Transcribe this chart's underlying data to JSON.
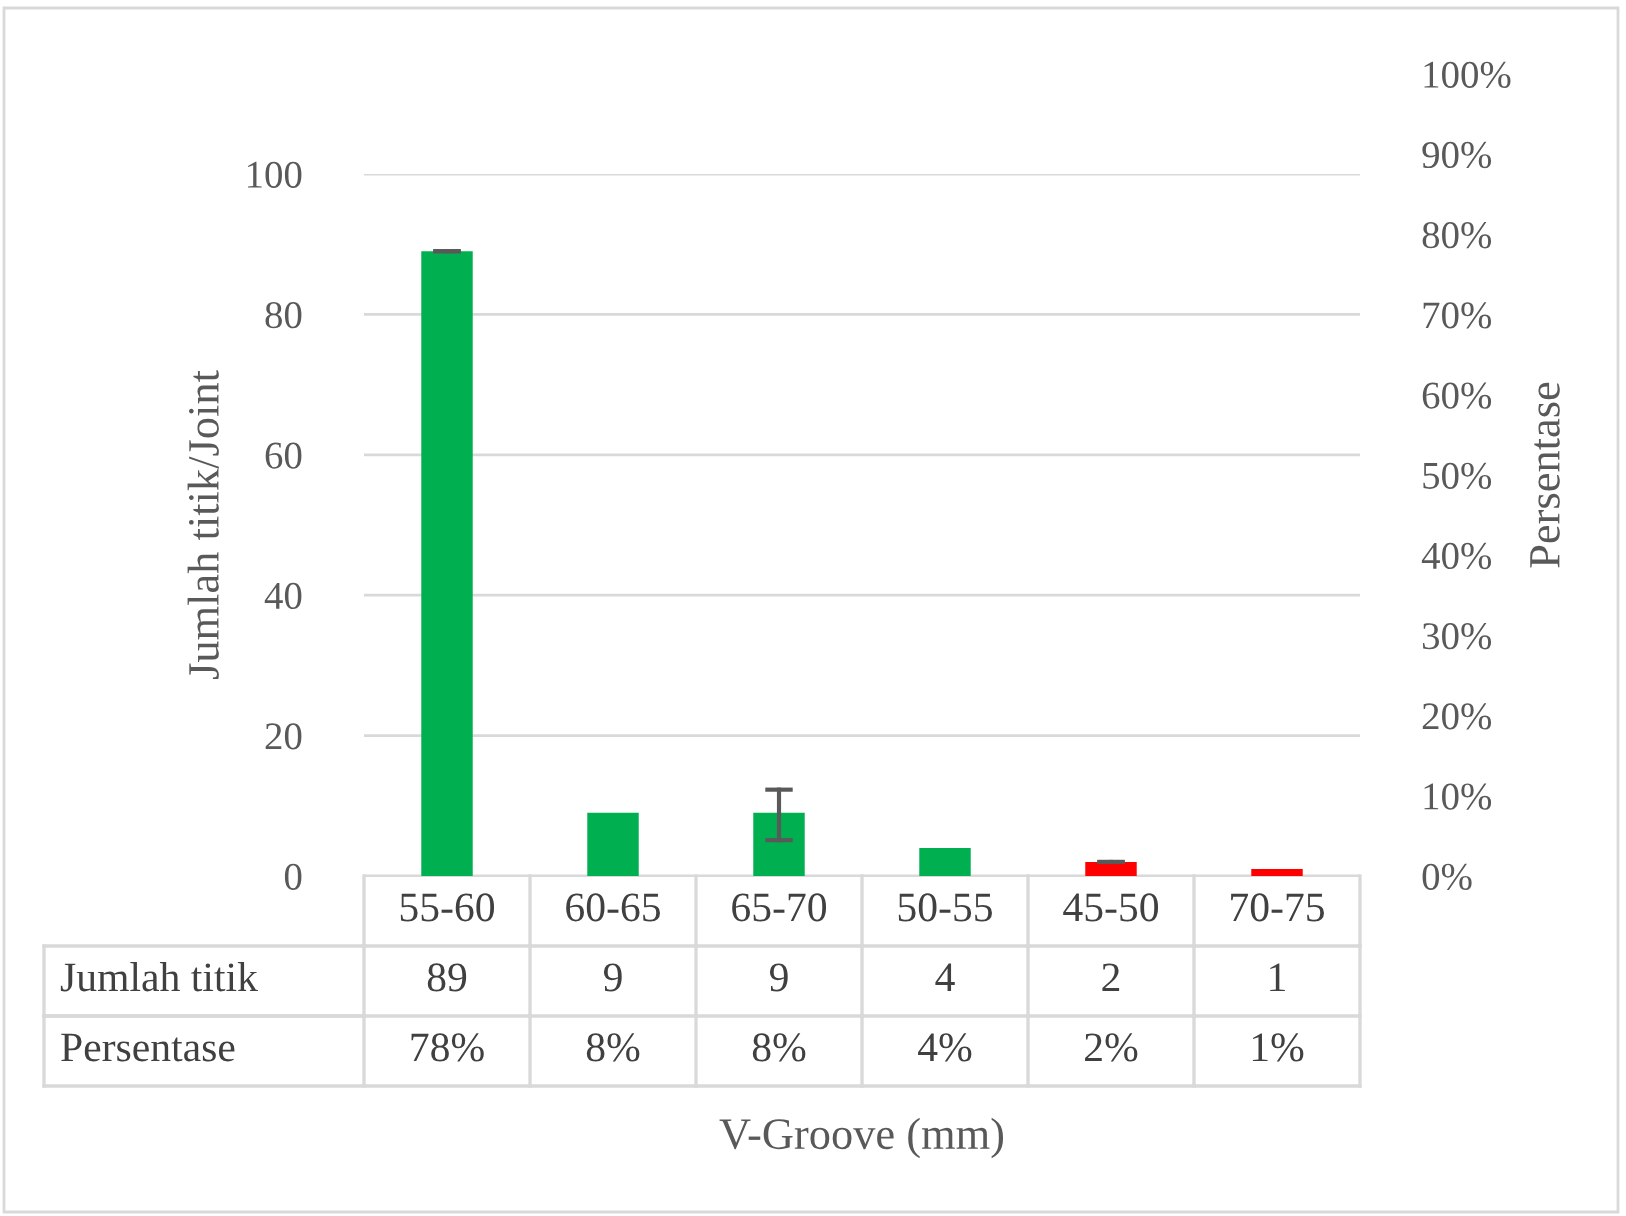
{
  "chart_data": {
    "type": "bar",
    "categories": [
      "55-60",
      "60-65",
      "65-70",
      "50-55",
      "45-50",
      "70-75"
    ],
    "series": [
      {
        "name": "Jumlah titik",
        "values": [
          89,
          9,
          9,
          4,
          2,
          1
        ],
        "colors": [
          "#00b050",
          "#00b050",
          "#00b050",
          "#00b050",
          "#ff0000",
          "#ff0000"
        ],
        "errors": [
          [
            89,
            89
          ],
          null,
          [
            5.1,
            12.3
          ],
          null,
          [
            2,
            2
          ],
          null
        ],
        "value_labels": [
          "89",
          "9",
          "9",
          "4",
          "2",
          "1"
        ]
      }
    ],
    "annotations": [
      "Persentase",
      "78%",
      "8%",
      "8%",
      "4%",
      "2%",
      "1%"
    ],
    "xlabel": "V-Groove (mm)",
    "ylabel": "Jumlah titik/Joint",
    "y2label": "Persentase",
    "ylim": [
      0,
      100
    ],
    "yticks": [
      0,
      20,
      40,
      60,
      80,
      100
    ],
    "y2lim": [
      0,
      100
    ],
    "y2ticks": [
      {
        "value": 0,
        "label": "0%"
      },
      {
        "value": 10,
        "label": "10%"
      },
      {
        "value": 20,
        "label": "20%"
      },
      {
        "value": 30,
        "label": "30%"
      },
      {
        "value": 40,
        "label": "40%"
      },
      {
        "value": 50,
        "label": "50%"
      },
      {
        "value": 60,
        "label": "60%"
      },
      {
        "value": 70,
        "label": "70%"
      },
      {
        "value": 80,
        "label": "80%"
      },
      {
        "value": 90,
        "label": "90%"
      },
      {
        "value": 100,
        "label": "100%"
      }
    ],
    "grid": "y",
    "legend": "bottom"
  }
}
